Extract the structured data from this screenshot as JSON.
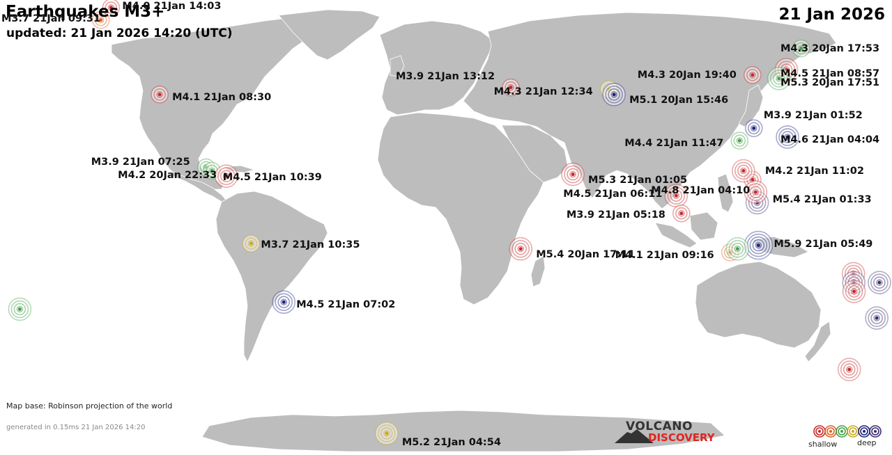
{
  "header": {
    "title": "Earthquakes M3+",
    "updated": "updated: 21 Jan 2026 14:20 (UTC)",
    "date": "21 Jan 2026"
  },
  "footer": {
    "map_base": "Map base: Robinson projection of the world",
    "generated": "generated in 0.15ms 21 Jan 2026 14:20"
  },
  "logo": {
    "line1": "VOLCANO",
    "line2": "DISCOVERY"
  },
  "legend": {
    "shallow": "shallow",
    "deep": "deep",
    "depth_colors": [
      "#c62828",
      "#e06020",
      "#43a047",
      "#c9a820",
      "#1a237e",
      "#3c2a6e"
    ]
  },
  "colors": {
    "ocean": "#ffffff",
    "land": "#bdbdbd",
    "border": "#ffffff"
  },
  "quakes": [
    {
      "label": "M3.7 21Jan 09:31",
      "color": "#e06020",
      "lat": 57.5,
      "lon": -153.5
    },
    {
      "label": "M4.0 21Jan 14:03",
      "color": "#c62828",
      "lat": 61.0,
      "lon": -150.5
    },
    {
      "label": "M4.1 21Jan 08:30",
      "color": "#c62828",
      "lat": 36.5,
      "lon": -121.0
    },
    {
      "label": "M3.9 21Jan 07:25",
      "color": "#43a047",
      "lat": 16.0,
      "lon": -98.5
    },
    {
      "label": "M4.2 20Jan 22:33",
      "color": "#43a047",
      "lat": 15.0,
      "lon": -96.0
    },
    {
      "label": "M4.5 21Jan 10:39",
      "color": "#c62828",
      "lat": 13.5,
      "lon": -90.0
    },
    {
      "label": "M3.7 21Jan 10:35",
      "color": "#c9a820",
      "lat": -5.5,
      "lon": -79.5
    },
    {
      "label": "M4.5 21Jan 07:02",
      "color": "#1a237e",
      "lat": -22.0,
      "lon": -67.0
    },
    {
      "label": "M5.2 21Jan 04:54",
      "color": "#c9a820",
      "lat": -59.0,
      "lon": -26.5
    },
    {
      "label": "M3.9 21Jan 13:12",
      "color": "#c62828",
      "lat": 38.5,
      "lon": 27.5
    },
    {
      "label": "M4.3 21Jan 12:34",
      "color": "#c9a820",
      "lat": 38.0,
      "lon": 69.0
    },
    {
      "label": "M5.1 20Jan 15:46",
      "color": "#1a237e",
      "lat": 36.5,
      "lon": 71.0
    },
    {
      "label": "M5.3 21Jan 01:05",
      "color": "#c62828",
      "lat": 14.0,
      "lon": 52.0
    },
    {
      "label": "M4.5 21Jan 06:11",
      "color": "#c62828",
      "lat": 8.0,
      "lon": 94.0
    },
    {
      "label": "M3.9 21Jan 05:18",
      "color": "#c62828",
      "lat": 3.0,
      "lon": 96.0
    },
    {
      "label": "M5.4 20Jan 17:11",
      "color": "#c62828",
      "lat": -7.0,
      "lon": 30.5
    },
    {
      "label": "M4.4 21Jan 11:47",
      "color": "#43a047",
      "lat": 23.5,
      "lon": 121.5
    },
    {
      "label": "M3.9 21Jan 01:52",
      "color": "#1a237e",
      "lat": 27.0,
      "lon": 128.0
    },
    {
      "label": "M4.6 21Jan 04:04",
      "color": "#1a237e",
      "lat": 24.5,
      "lon": 141.5
    },
    {
      "label": "M4.3 20Jan 19:40",
      "color": "#c62828",
      "lat": 42.0,
      "lon": 131.0
    },
    {
      "label": "M4.3 20Jan 17:53",
      "color": "#43a047",
      "lat": 49.5,
      "lon": 154.5
    },
    {
      "label": "M4.5 21Jan 08:57",
      "color": "#c62828",
      "lat": 43.5,
      "lon": 146.0
    },
    {
      "label": "M5.3 20Jan 17:51",
      "color": "#43a047",
      "lat": 41.0,
      "lon": 142.0
    },
    {
      "label": "M4.2 21Jan 11:02",
      "color": "#c62828",
      "lat": 12.5,
      "lon": 125.5
    },
    {
      "label": "M5.4 21Jan 01:33",
      "color": "#3c2a6e",
      "lat": 6.0,
      "lon": 127.0
    },
    {
      "label": "M4.8 21Jan 04:10",
      "color": "#c62828",
      "lat": 9.0,
      "lon": 126.5
    },
    {
      "label": "M4.1 21Jan 09:16",
      "color": "#e06020",
      "lat": -8.0,
      "lon": 116.0
    },
    {
      "label": "M5.9 21Jan 05:49",
      "color": "#1a237e",
      "lat": -6.0,
      "lon": 127.5
    },
    {
      "label": "",
      "color": "#43a047",
      "lat": -7.0,
      "lon": 119.0
    },
    {
      "label": "",
      "color": "#c62828",
      "lat": -14.0,
      "lon": 167.0
    },
    {
      "label": "",
      "color": "#3c2a6e",
      "lat": -16.5,
      "lon": 167.5
    },
    {
      "label": "",
      "color": "#c62828",
      "lat": -19.0,
      "lon": 168.0
    },
    {
      "label": "",
      "color": "#3c2a6e",
      "lat": -16.5,
      "lon": 178.0
    },
    {
      "label": "",
      "color": "#43a047",
      "lat": -24.0,
      "lon": -176.5
    },
    {
      "label": "",
      "color": "#3c2a6e",
      "lat": -26.5,
      "lon": 179.0
    },
    {
      "label": "",
      "color": "#c62828",
      "lat": -41.0,
      "lon": 172.0
    },
    {
      "label": "",
      "color": "#c62828",
      "lat": 15.0,
      "lon": 122.0
    }
  ]
}
